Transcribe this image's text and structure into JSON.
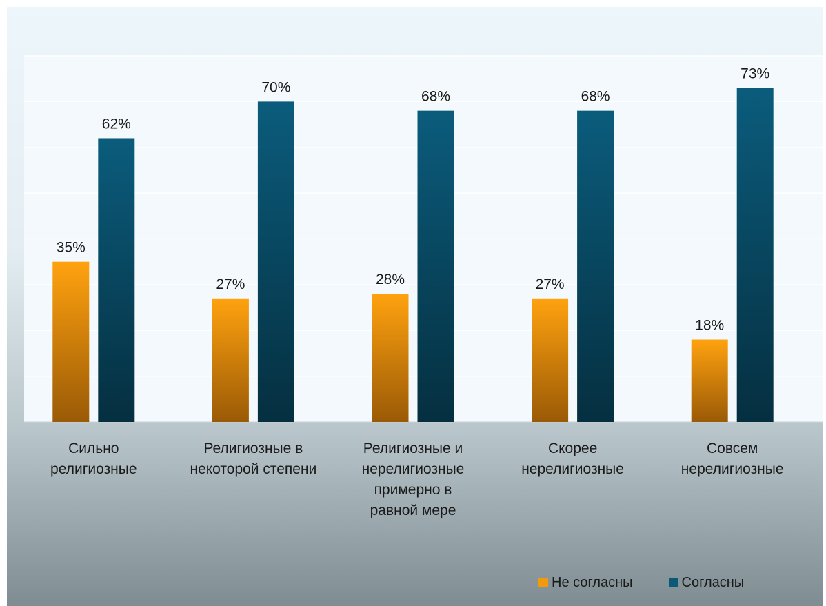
{
  "chart_data": {
    "type": "bar",
    "title": "",
    "categories": [
      "Сильно религиозные",
      "Религиозные в некоторой степени",
      "Религиозные и нерелигиозные примерно в равной мере",
      "Скорее нерелигиозные",
      "Совсем нерелигиозные"
    ],
    "category_lines": [
      [
        "Сильно",
        "религиозные"
      ],
      [
        "Религиозные в",
        "некоторой степени"
      ],
      [
        "Религиозные и",
        "нерелигиозные",
        "примерно в",
        "равной мере"
      ],
      [
        "Скорее",
        "нерелигиозные"
      ],
      [
        "Совсем",
        "нерелигиозные"
      ]
    ],
    "series": [
      {
        "name": "Не согласны",
        "values": [
          35,
          27,
          28,
          27,
          18
        ],
        "color": "#f29a0e"
      },
      {
        "name": "Согласны",
        "values": [
          62,
          70,
          68,
          68,
          73
        ],
        "color": "#0b5877"
      }
    ],
    "value_suffix": "%",
    "ylim": [
      0,
      80
    ],
    "gridlines": true,
    "legend_position": "bottom-right"
  }
}
